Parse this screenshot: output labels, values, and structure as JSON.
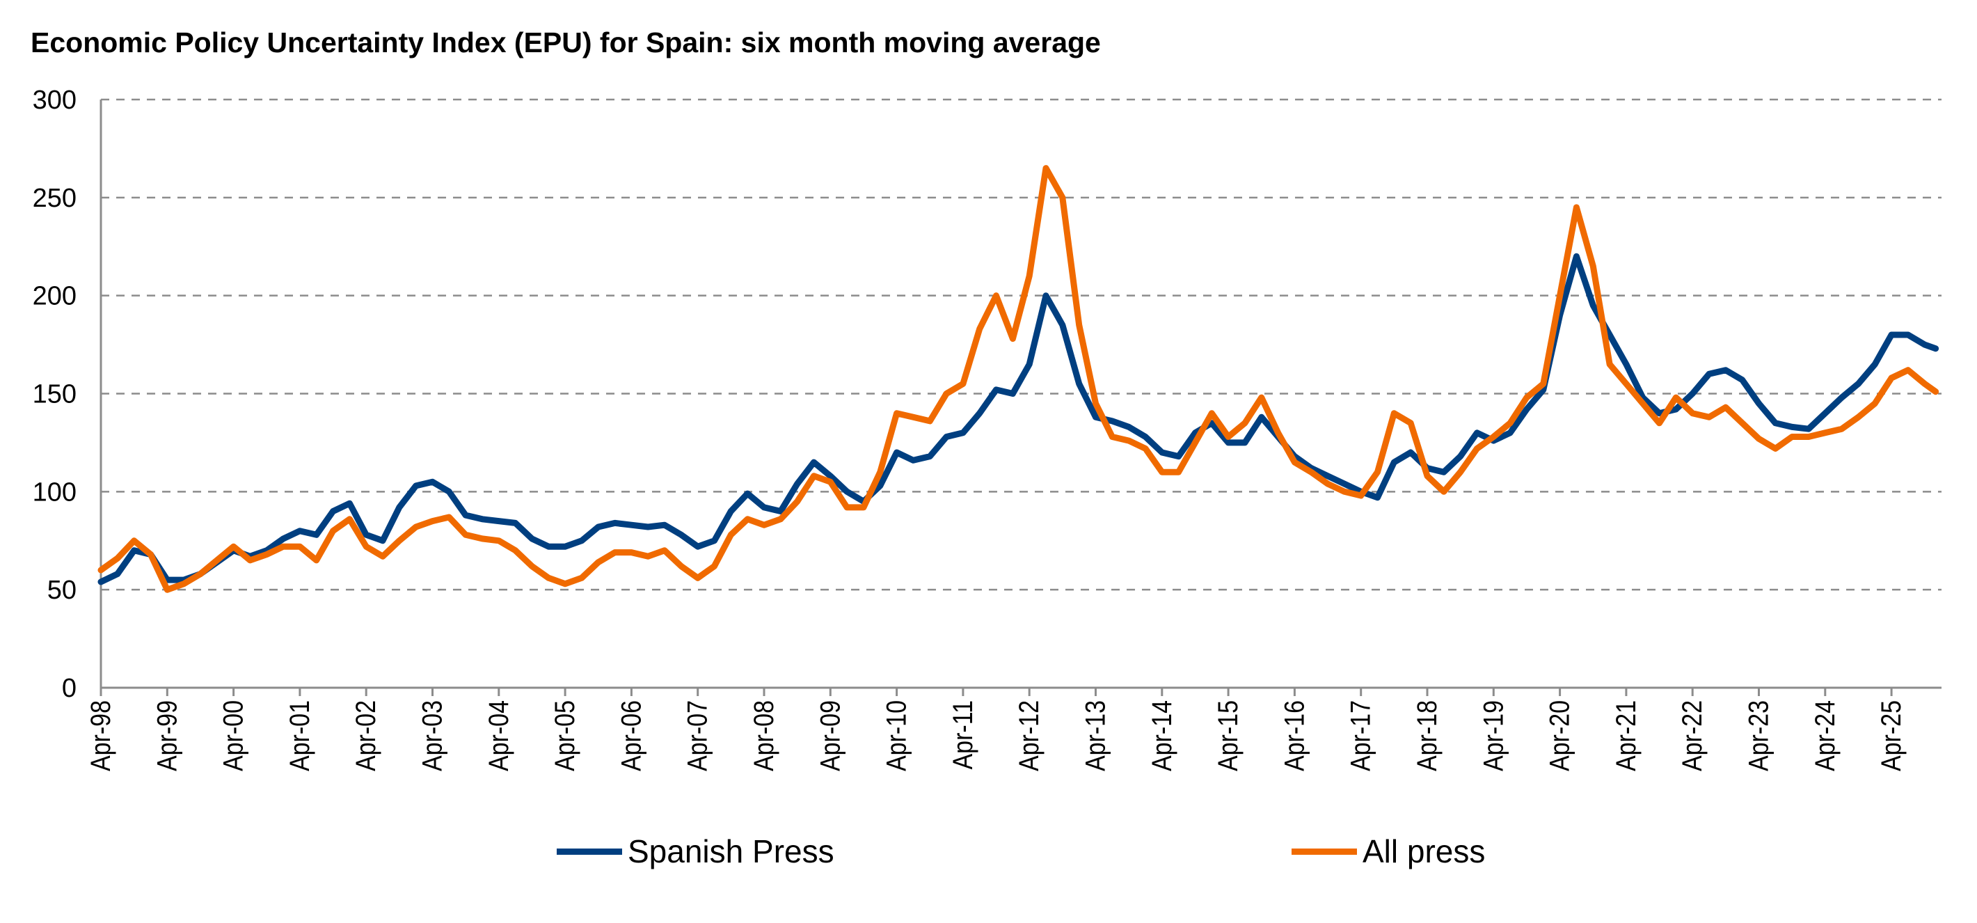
{
  "chart_data": {
    "type": "line",
    "title": "Economic Policy Uncertainty Index (EPU) for Spain: six month moving average",
    "xlabel": "",
    "ylabel": "",
    "ylim": [
      0,
      300
    ],
    "yticks": [
      "0",
      "50",
      "100",
      "150",
      "200",
      "250",
      "300"
    ],
    "xticks": [
      "Apr-98",
      "Apr-99",
      "Apr-00",
      "Apr-01",
      "Apr-02",
      "Apr-03",
      "Apr-04",
      "Apr-05",
      "Apr-06",
      "Apr-07",
      "Apr-08",
      "Apr-09",
      "Apr-10",
      "Apr-11",
      "Apr-12",
      "Apr-13",
      "Apr-14",
      "Apr-15",
      "Apr-16",
      "Apr-17",
      "Apr-18",
      "Apr-19",
      "Apr-20",
      "Apr-21",
      "Apr-22",
      "Apr-23",
      "Apr-24",
      "Apr-25"
    ],
    "grid": "horizontal dashed",
    "legend_position": "bottom",
    "x": [
      "1998-04",
      "1998-07",
      "1998-10",
      "1999-01",
      "1999-04",
      "1999-07",
      "1999-10",
      "2000-01",
      "2000-04",
      "2000-07",
      "2000-10",
      "2001-01",
      "2001-04",
      "2001-07",
      "2001-10",
      "2002-01",
      "2002-04",
      "2002-07",
      "2002-10",
      "2003-01",
      "2003-04",
      "2003-07",
      "2003-10",
      "2004-01",
      "2004-04",
      "2004-07",
      "2004-10",
      "2005-01",
      "2005-04",
      "2005-07",
      "2005-10",
      "2006-01",
      "2006-04",
      "2006-07",
      "2006-10",
      "2007-01",
      "2007-04",
      "2007-07",
      "2007-10",
      "2008-01",
      "2008-04",
      "2008-07",
      "2008-10",
      "2009-01",
      "2009-04",
      "2009-07",
      "2009-10",
      "2010-01",
      "2010-04",
      "2010-07",
      "2010-10",
      "2011-01",
      "2011-04",
      "2011-07",
      "2011-10",
      "2012-01",
      "2012-04",
      "2012-07",
      "2012-10",
      "2013-01",
      "2013-04",
      "2013-07",
      "2013-10",
      "2014-01",
      "2014-04",
      "2014-07",
      "2014-10",
      "2015-01",
      "2015-04",
      "2015-07",
      "2015-10",
      "2016-01",
      "2016-04",
      "2016-07",
      "2016-10",
      "2017-01",
      "2017-04",
      "2017-07",
      "2017-10",
      "2018-01",
      "2018-04",
      "2018-07",
      "2018-10",
      "2019-01",
      "2019-04",
      "2019-07",
      "2019-10",
      "2020-01",
      "2020-04",
      "2020-07",
      "2020-10",
      "2021-01",
      "2021-04",
      "2021-07",
      "2021-10",
      "2022-01",
      "2022-04",
      "2022-07",
      "2022-10",
      "2023-01",
      "2023-04",
      "2023-07",
      "2023-10",
      "2024-01",
      "2024-04",
      "2024-07",
      "2024-10",
      "2025-01",
      "2025-04",
      "2025-07",
      "2025-10",
      "2025-12"
    ],
    "series": [
      {
        "name": "Spanish Press",
        "color": "#003f80",
        "values": [
          54,
          58,
          70,
          68,
          55,
          55,
          58,
          64,
          70,
          67,
          70,
          76,
          80,
          78,
          90,
          94,
          78,
          75,
          92,
          103,
          105,
          100,
          88,
          86,
          85,
          84,
          76,
          72,
          72,
          75,
          82,
          84,
          83,
          82,
          83,
          78,
          72,
          75,
          90,
          99,
          92,
          90,
          104,
          115,
          108,
          100,
          95,
          103,
          120,
          116,
          118,
          128,
          130,
          140,
          152,
          150,
          165,
          200,
          185,
          155,
          138,
          136,
          133,
          128,
          120,
          118,
          130,
          135,
          125,
          125,
          138,
          128,
          118,
          112,
          108,
          104,
          100,
          97,
          115,
          120,
          112,
          110,
          118,
          130,
          126,
          130,
          142,
          152,
          190,
          220,
          195,
          180,
          165,
          148,
          140,
          142,
          150,
          160,
          162,
          157,
          145,
          135,
          133,
          132,
          140,
          148,
          155,
          165,
          180,
          180,
          175,
          173
        ]
      },
      {
        "name": "All press",
        "color": "#f06a00",
        "values": [
          60,
          66,
          75,
          68,
          50,
          53,
          58,
          65,
          72,
          65,
          68,
          72,
          72,
          65,
          80,
          86,
          72,
          67,
          75,
          82,
          85,
          87,
          78,
          76,
          75,
          70,
          62,
          56,
          53,
          56,
          64,
          69,
          69,
          67,
          70,
          62,
          56,
          62,
          78,
          86,
          83,
          86,
          95,
          108,
          105,
          92,
          92,
          110,
          140,
          138,
          136,
          150,
          155,
          183,
          200,
          178,
          210,
          265,
          250,
          185,
          145,
          128,
          126,
          122,
          110,
          110,
          125,
          140,
          128,
          135,
          148,
          130,
          115,
          110,
          104,
          100,
          98,
          110,
          140,
          135,
          108,
          100,
          110,
          122,
          128,
          135,
          148,
          155,
          200,
          245,
          215,
          165,
          155,
          145,
          135,
          148,
          140,
          138,
          143,
          135,
          127,
          122,
          128,
          128,
          130,
          132,
          138,
          145,
          158,
          162,
          155,
          151
        ]
      }
    ]
  }
}
